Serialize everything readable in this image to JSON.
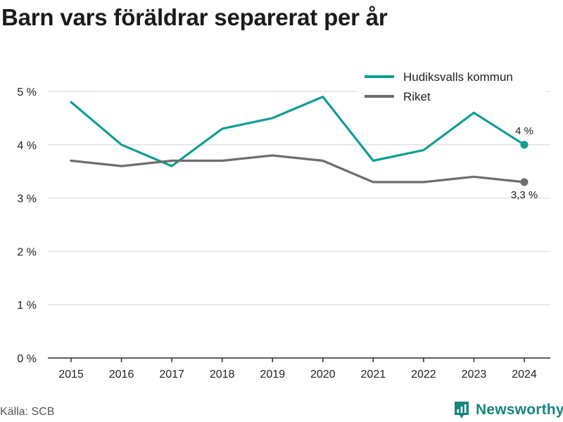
{
  "title": "Barn vars föräldrar separerat per år",
  "source": "Källa: SCB",
  "brand": {
    "name": "Newsworthy",
    "logo_icon": "newsworthy-logo-icon",
    "color": "#17857d"
  },
  "chart_data": {
    "type": "line",
    "categories": [
      "2015",
      "2016",
      "2017",
      "2018",
      "2019",
      "2020",
      "2021",
      "2022",
      "2023",
      "2024"
    ],
    "ylim": [
      0,
      5
    ],
    "yticks": [
      0,
      1,
      2,
      3,
      4,
      5
    ],
    "ytick_labels": [
      "0 %",
      "1 %",
      "2 %",
      "3 %",
      "4 %",
      "5 %"
    ],
    "grid": true,
    "legend_position": "top-right",
    "series": [
      {
        "name": "Hudiksvalls kommun",
        "color": "#0f9e93",
        "values": [
          4.8,
          4.0,
          3.6,
          4.3,
          4.5,
          4.9,
          3.7,
          3.9,
          4.6,
          4.0
        ],
        "end_label": "4 %"
      },
      {
        "name": "Riket",
        "color": "#6d6d6f",
        "values": [
          3.7,
          3.6,
          3.7,
          3.7,
          3.8,
          3.7,
          3.3,
          3.3,
          3.4,
          3.3
        ],
        "end_label": "3,3 %"
      }
    ]
  }
}
